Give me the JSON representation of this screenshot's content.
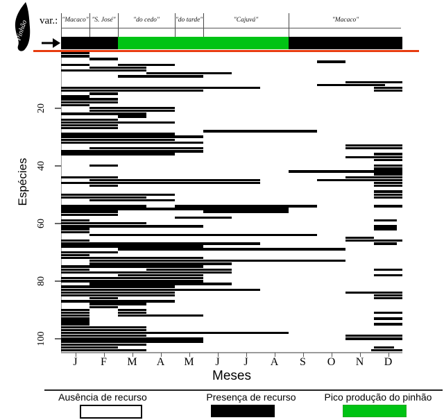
{
  "header": {
    "pinhao_icon_label": "Pinhão",
    "var_label": "var.:"
  },
  "colors": {
    "presence": "#000000",
    "absence": "#ffffff",
    "peak_green": "#00c314",
    "red_line": "#e73c10"
  },
  "legend": {
    "items": [
      {
        "label": "Ausência de recurso",
        "type": "absence"
      },
      {
        "label": "Presença de recurso",
        "type": "presence"
      },
      {
        "label": "Pico produção do pinhão",
        "type": "peak"
      }
    ]
  },
  "chart_data": {
    "type": "heatmap",
    "subtype": "phenology presence/absence matrix",
    "xlabel": "Meses",
    "ylabel": "Espécies",
    "x_categories": [
      "J",
      "F",
      "M",
      "A",
      "M",
      "J",
      "J",
      "A",
      "S",
      "O",
      "N",
      "D"
    ],
    "y_ticks": [
      20,
      40,
      60,
      80,
      100
    ],
    "n_species": 104,
    "month_unit": "0 = start of J(Jan), 12 = end of D(Dec)",
    "varieties": [
      {
        "label": "\"Macaco\"",
        "from": 0,
        "to": 1
      },
      {
        "label": "\"S. José\"",
        "from": 1,
        "to": 2
      },
      {
        "label": "\"do cedo\"",
        "from": 2,
        "to": 4
      },
      {
        "label": "\"do tarde\"",
        "from": 4,
        "to": 5
      },
      {
        "label": "\"Cajuvá\"",
        "from": 5,
        "to": 8
      },
      {
        "label": "\"Macaco\"",
        "from": 8,
        "to": 12
      }
    ],
    "pinhao_row": {
      "segments": [
        {
          "from": 0,
          "to": 2,
          "type": "presenca"
        },
        {
          "from": 2,
          "to": 8,
          "type": "pico"
        },
        {
          "from": 8,
          "to": 12,
          "type": "presenca"
        }
      ]
    },
    "rows": [
      [
        [
          0,
          1
        ]
      ],
      [
        [
          0,
          1
        ]
      ],
      [
        [
          1,
          2
        ]
      ],
      [
        [
          9,
          10
        ]
      ],
      [
        [
          0,
          1
        ],
        [
          2,
          4
        ]
      ],
      [
        [
          1,
          3
        ]
      ],
      [
        [
          0,
          3
        ]
      ],
      [
        [
          3,
          6
        ]
      ],
      [
        [
          2,
          5
        ]
      ],
      [],
      [
        [
          10,
          12
        ]
      ],
      [
        [
          9,
          11.4
        ]
      ],
      [
        [
          0,
          7
        ],
        [
          11,
          12
        ]
      ],
      [
        [
          0,
          5
        ],
        [
          11,
          12
        ]
      ],
      [
        [
          1,
          2
        ]
      ],
      [
        [
          0,
          1
        ]
      ],
      [
        [
          0,
          2
        ]
      ],
      [
        [
          0,
          2
        ]
      ],
      [
        [
          0,
          1
        ]
      ],
      [
        [
          1,
          4
        ]
      ],
      [
        [
          1,
          4
        ]
      ],
      [
        [
          0,
          3
        ]
      ],
      [
        [
          2,
          3
        ]
      ],
      [
        [
          0,
          2
        ]
      ],
      [
        [
          0,
          4
        ]
      ],
      [
        [
          0,
          2
        ]
      ],
      [
        [
          0,
          2
        ]
      ],
      [
        [
          5,
          9
        ]
      ],
      [
        [
          0,
          4
        ]
      ],
      [
        [
          0,
          5
        ]
      ],
      [
        [
          0,
          4
        ]
      ],
      [
        [
          0,
          5
        ]
      ],
      [
        [
          10,
          12
        ]
      ],
      [
        [
          1,
          5
        ],
        [
          10,
          12
        ]
      ],
      [
        [
          0,
          5
        ]
      ],
      [
        [
          0,
          4
        ],
        [
          11,
          12
        ]
      ],
      [
        [
          10,
          12
        ]
      ],
      [
        [
          11,
          12
        ]
      ],
      [],
      [
        [
          1,
          2
        ],
        [
          11,
          12
        ]
      ],
      [
        [
          11,
          12
        ]
      ],
      [
        [
          8,
          12
        ]
      ],
      [
        [
          11,
          12
        ]
      ],
      [
        [
          0,
          2
        ],
        [
          10,
          12
        ]
      ],
      [
        [
          1,
          7
        ],
        [
          9,
          12
        ]
      ],
      [
        [
          0,
          7
        ],
        [
          11,
          12
        ]
      ],
      [
        [
          1,
          2
        ],
        [
          11,
          12
        ]
      ],
      [],
      [
        [
          11,
          12
        ]
      ],
      [
        [
          0,
          4
        ],
        [
          11,
          12
        ]
      ],
      [
        [
          0,
          3
        ],
        [
          11,
          12
        ]
      ],
      [
        [
          1,
          4
        ]
      ],
      [],
      [
        [
          0,
          3
        ],
        [
          4,
          9
        ],
        [
          11,
          12
        ]
      ],
      [
        [
          0,
          8
        ]
      ],
      [
        [
          0,
          2
        ],
        [
          5,
          8
        ]
      ],
      [
        [
          0,
          2
        ]
      ],
      [
        [
          4,
          6
        ]
      ],
      [
        [
          0,
          1
        ],
        [
          11,
          11.8
        ]
      ],
      [
        [
          0,
          3
        ]
      ],
      [
        [
          0,
          5
        ],
        [
          11,
          11.8
        ]
      ],
      [
        [
          0,
          1
        ],
        [
          11,
          11.8
        ]
      ],
      [
        [
          0,
          1
        ]
      ],
      [
        [
          1,
          9
        ]
      ],
      [
        [
          10,
          11
        ]
      ],
      [
        [
          0,
          1
        ],
        [
          10,
          12
        ]
      ],
      [
        [
          0,
          7
        ],
        [
          11,
          11.8
        ]
      ],
      [
        [
          0,
          5
        ]
      ],
      [
        [
          2,
          10
        ]
      ],
      [
        [
          0,
          2
        ]
      ],
      [
        [
          0,
          1
        ]
      ],
      [
        [
          0,
          5
        ]
      ],
      [
        [
          1,
          10
        ]
      ],
      [
        [
          1,
          6
        ]
      ],
      [
        [
          0,
          5
        ]
      ],
      [
        [
          0,
          1
        ],
        [
          3,
          6
        ],
        [
          11,
          12
        ]
      ],
      [
        [
          0,
          6
        ]
      ],
      [
        [
          2,
          5
        ],
        [
          11,
          12
        ]
      ],
      [
        [
          0,
          5
        ]
      ],
      [
        [
          0,
          5
        ]
      ],
      [
        [
          1,
          6
        ]
      ],
      [
        [
          0,
          4
        ]
      ],
      [
        [
          0,
          7
        ]
      ],
      [
        [
          0,
          4
        ],
        [
          10,
          12
        ]
      ],
      [
        [
          0,
          4
        ],
        [
          11,
          12
        ]
      ],
      [
        [
          1,
          2
        ],
        [
          11,
          12
        ]
      ],
      [
        [
          0,
          4
        ]
      ],
      [
        [
          1,
          3
        ]
      ],
      [
        [
          1,
          2
        ]
      ],
      [
        [
          0,
          1
        ],
        [
          2,
          3
        ]
      ],
      [
        [
          0,
          1
        ],
        [
          2,
          3
        ],
        [
          11,
          12
        ]
      ],
      [
        [
          0,
          1
        ],
        [
          2,
          5
        ]
      ],
      [
        [
          0,
          1
        ],
        [
          11,
          12
        ]
      ],
      [
        [
          0,
          1
        ]
      ],
      [
        [
          0,
          1
        ],
        [
          11,
          12
        ]
      ],
      [
        [
          0,
          3
        ]
      ],
      [
        [
          0,
          3
        ]
      ],
      [
        [
          0,
          8
        ]
      ],
      [
        [
          0,
          3
        ],
        [
          10,
          12
        ]
      ],
      [
        [
          0,
          5
        ],
        [
          10,
          12
        ]
      ],
      [
        [
          0,
          5
        ]
      ],
      [
        [
          0,
          3
        ]
      ],
      [
        [
          0,
          2
        ],
        [
          11,
          11.7
        ]
      ],
      [
        [
          0,
          3
        ],
        [
          10.9,
          12
        ]
      ]
    ]
  }
}
